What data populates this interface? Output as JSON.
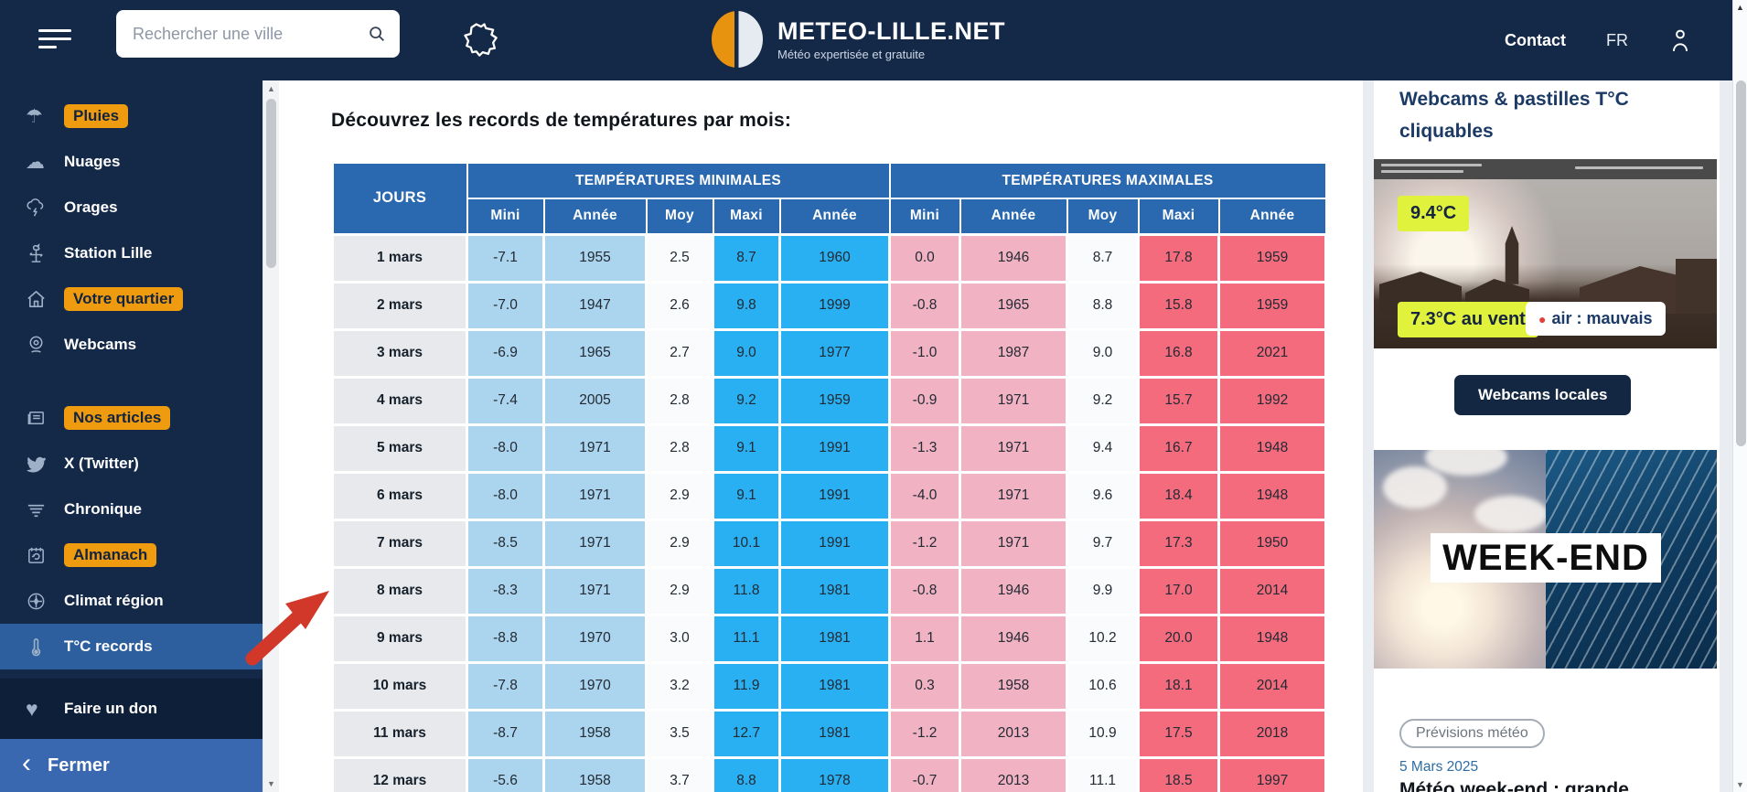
{
  "header": {
    "search_placeholder": "Rechercher une ville",
    "brand": "METEO-LILLE.NET",
    "tagline": "Météo expertisée et gratuite",
    "contact_label": "Contact",
    "lang_label": "FR"
  },
  "sidebar": {
    "items": [
      {
        "label": "Pluies",
        "icon": "umbrella",
        "badge": true,
        "active": false,
        "gap": false
      },
      {
        "label": "Nuages",
        "icon": "cloud",
        "badge": false,
        "active": false,
        "gap": false
      },
      {
        "label": "Orages",
        "icon": "storm",
        "badge": false,
        "active": false,
        "gap": false
      },
      {
        "label": "Station Lille",
        "icon": "weathervane",
        "badge": false,
        "active": false,
        "gap": false
      },
      {
        "label": "Votre quartier",
        "icon": "house",
        "badge": true,
        "active": false,
        "gap": false
      },
      {
        "label": "Webcams",
        "icon": "webcam",
        "badge": false,
        "active": false,
        "gap": false
      },
      {
        "label": "Nos articles",
        "icon": "newspaper",
        "badge": true,
        "active": false,
        "gap": true
      },
      {
        "label": "X (Twitter)",
        "icon": "twitter",
        "badge": false,
        "active": false,
        "gap": false
      },
      {
        "label": "Chronique",
        "icon": "wind",
        "badge": false,
        "active": false,
        "gap": false
      },
      {
        "label": "Almanach",
        "icon": "calendar",
        "badge": true,
        "active": false,
        "gap": false
      },
      {
        "label": "Climat région",
        "icon": "compass",
        "badge": false,
        "active": false,
        "gap": false
      },
      {
        "label": "T°C records",
        "icon": "thermometer",
        "badge": false,
        "active": true,
        "gap": false
      }
    ],
    "donate_label": "Faire un don",
    "close_label": "Fermer"
  },
  "main": {
    "heading": "Découvrez les records de températures par mois:",
    "table": {
      "col_jours": "JOURS",
      "group_min": "TEMPÉRATURES MINIMALES",
      "group_max": "TEMPÉRATURES MAXIMALES",
      "sub_headers": [
        "Mini",
        "Année",
        "Moy",
        "Maxi",
        "Année",
        "Mini",
        "Année",
        "Moy",
        "Maxi",
        "Année"
      ],
      "rows": [
        {
          "day": "1 mars",
          "values": [
            "-7.1",
            "1955",
            "2.5",
            "8.7",
            "1960",
            "0.0",
            "1946",
            "8.7",
            "17.8",
            "1959"
          ]
        },
        {
          "day": "2 mars",
          "values": [
            "-7.0",
            "1947",
            "2.6",
            "9.8",
            "1999",
            "-0.8",
            "1965",
            "8.8",
            "15.8",
            "1959"
          ]
        },
        {
          "day": "3 mars",
          "values": [
            "-6.9",
            "1965",
            "2.7",
            "9.0",
            "1977",
            "-1.0",
            "1987",
            "9.0",
            "16.8",
            "2021"
          ]
        },
        {
          "day": "4 mars",
          "values": [
            "-7.4",
            "2005",
            "2.8",
            "9.2",
            "1959",
            "-0.9",
            "1971",
            "9.2",
            "15.7",
            "1992"
          ]
        },
        {
          "day": "5 mars",
          "values": [
            "-8.0",
            "1971",
            "2.8",
            "9.1",
            "1991",
            "-1.3",
            "1971",
            "9.4",
            "16.7",
            "1948"
          ]
        },
        {
          "day": "6 mars",
          "values": [
            "-8.0",
            "1971",
            "2.9",
            "9.1",
            "1991",
            "-4.0",
            "1971",
            "9.6",
            "18.4",
            "1948"
          ]
        },
        {
          "day": "7 mars",
          "values": [
            "-8.5",
            "1971",
            "2.9",
            "10.1",
            "1991",
            "-1.2",
            "1971",
            "9.7",
            "17.3",
            "1950"
          ]
        },
        {
          "day": "8 mars",
          "values": [
            "-8.3",
            "1971",
            "2.9",
            "11.8",
            "1981",
            "-0.8",
            "1946",
            "9.9",
            "17.0",
            "2014"
          ]
        },
        {
          "day": "9 mars",
          "values": [
            "-8.8",
            "1970",
            "3.0",
            "11.1",
            "1981",
            "1.1",
            "1946",
            "10.2",
            "20.0",
            "1948"
          ]
        },
        {
          "day": "10 mars",
          "values": [
            "-7.8",
            "1970",
            "3.2",
            "11.9",
            "1981",
            "0.3",
            "1958",
            "10.6",
            "18.1",
            "2014"
          ]
        },
        {
          "day": "11 mars",
          "values": [
            "-8.7",
            "1958",
            "3.5",
            "12.7",
            "1981",
            "-1.2",
            "2013",
            "10.9",
            "17.5",
            "2018"
          ]
        },
        {
          "day": "12 mars",
          "values": [
            "-5.6",
            "1958",
            "3.7",
            "8.8",
            "1978",
            "-0.7",
            "2013",
            "11.1",
            "18.5",
            "1997"
          ]
        }
      ]
    }
  },
  "aside": {
    "heading": "Webcams & pastilles T°C cliquables",
    "temp_badge": "9.4°C",
    "wind_badge": "7.3°C au vent",
    "air_badge": "air : mauvais",
    "webcams_button": "Webcams locales",
    "weekend_label": "WEEK-END",
    "category_tag": "Prévisions météo",
    "date": "5 Mars 2025",
    "headline_partial": "Météo week-end : grande"
  },
  "colors": {
    "navy": "#142948",
    "orange_badge": "#ee9b10",
    "active_blue": "#2d5f9f",
    "close_blue": "#3968b0",
    "table_header_blue": "#2a68b0",
    "cell_lightblue": "#abd4ee",
    "cell_brightblue": "#29b0f2",
    "cell_pink": "#f1b3c3",
    "cell_red": "#f46b7e",
    "pastille_yellow": "#e1f23d",
    "arrow_red": "#d2382a",
    "link_blue": "#2e6da4"
  }
}
